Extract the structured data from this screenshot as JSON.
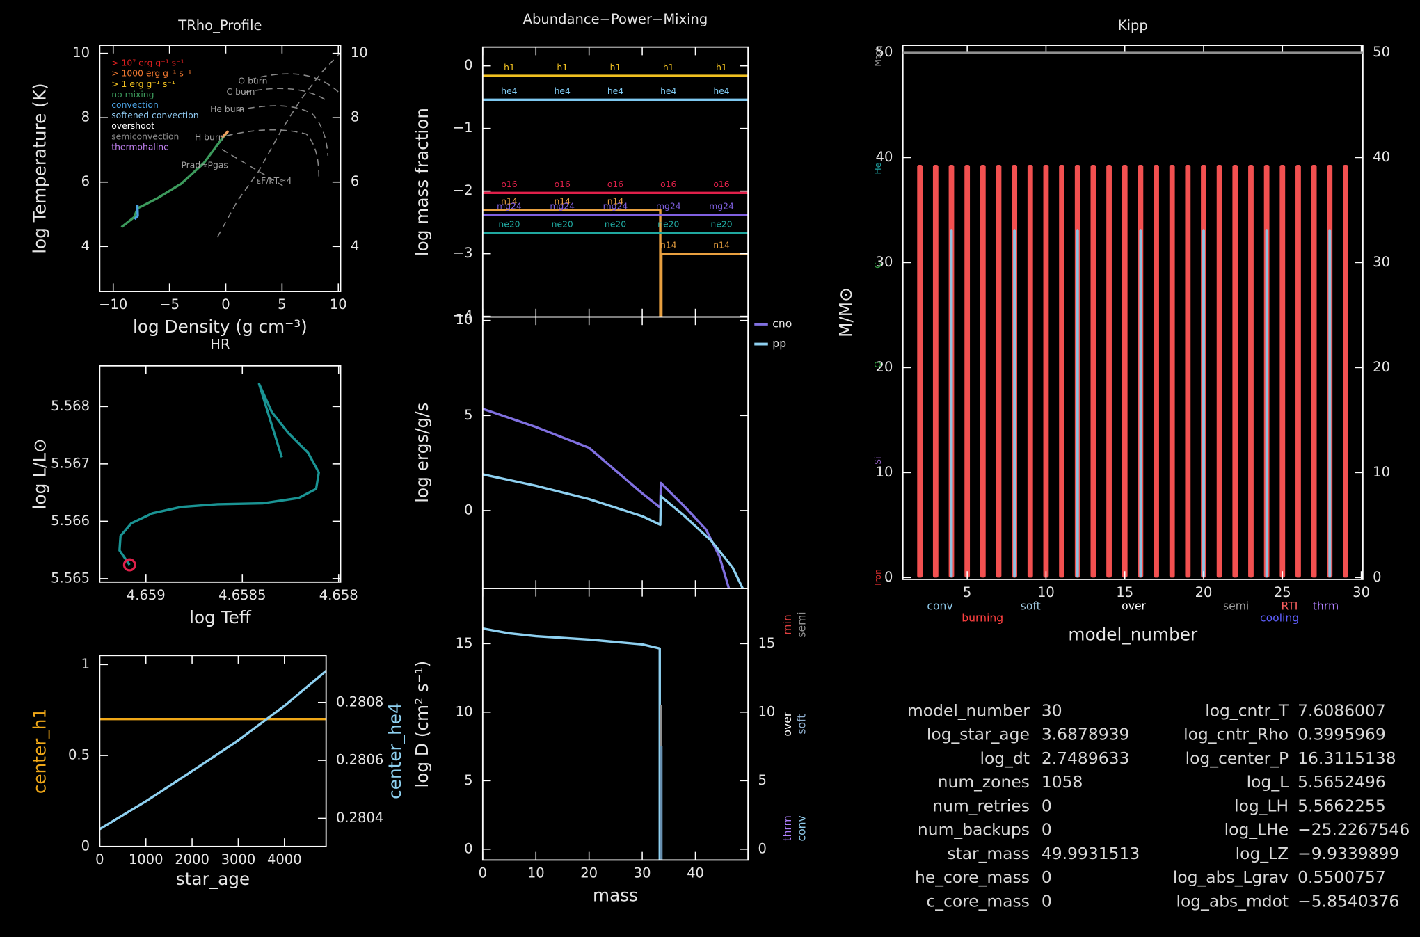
{
  "chart_data": [
    {
      "type": "line",
      "title": "TRho_Profile",
      "xlabel": "log Density (g cm⁻³)",
      "ylabel": "log Temperature (K)",
      "xlim": [
        -11.2,
        10.2
      ],
      "ylim": [
        2.6,
        10.25
      ],
      "xticks": [
        {
          "value": -10,
          "label": "−10"
        },
        {
          "value": -5,
          "label": "−5"
        },
        0,
        5,
        10
      ],
      "yticks": [
        4,
        6,
        8,
        10
      ],
      "series": [
        {
          "color": "#3c9a5c",
          "x": [
            -9.27,
            -8.14,
            -7.82,
            -7.18,
            -5.97,
            -3.96,
            -1.95,
            -0.74,
            0.06
          ],
          "values": [
            4.6,
            4.91,
            5.19,
            5.3,
            5.52,
            5.95,
            6.59,
            7.16,
            7.52
          ]
        },
        {
          "color": "#4aa0e0",
          "x": [
            -7.85,
            -7.82,
            -8.1
          ],
          "values": [
            5.3,
            4.95,
            4.85
          ]
        },
        {
          "color": "#f0a060",
          "x": [
            -0.34,
            0.22
          ],
          "values": [
            7.38,
            7.58
          ]
        }
      ],
      "legend_items": [
        {
          "text": "> 10⁷ erg g⁻¹ s⁻¹",
          "color": "#e02020"
        },
        {
          "text": "> 1000 erg g⁻¹ s⁻¹",
          "color": "#f07830"
        },
        {
          "text": "> 1 erg g⁻¹ s⁻¹",
          "color": "#f0c020"
        },
        {
          "text": "no mixing",
          "color": "#3c9a5c"
        },
        {
          "text": "convection",
          "color": "#4aa0e0"
        },
        {
          "text": "softened convection",
          "color": "#8ec8f0"
        },
        {
          "text": "overshoot",
          "color": "#ffffff"
        },
        {
          "text": "semiconvection",
          "color": "#909090"
        },
        {
          "text": "thermohaline",
          "color": "#c080f0"
        }
      ],
      "annotations": [
        "O burn",
        "C burn",
        "He burn",
        "H burn",
        "Prad≈Pgas",
        "εF/kT≈4"
      ]
    },
    {
      "type": "line",
      "title": "HR",
      "xlabel": "log Teff",
      "ylabel": "log L/L⊙",
      "xlim": [
        4.65924,
        4.65799
      ],
      "ylim": [
        5.56494,
        5.56871
      ],
      "xticks": [
        4.659,
        4.6585,
        4.658
      ],
      "yticks": [
        5.565,
        5.566,
        5.567,
        5.568
      ],
      "series": [
        {
          "color": "#1a9494",
          "x": [
            4.659085,
            4.659137,
            4.659132,
            4.659076,
            4.658967,
            4.658817,
            4.658629,
            4.658394,
            4.658206,
            4.658117,
            4.658103,
            4.658159,
            4.658262,
            4.658347,
            4.658413,
            4.658361,
            4.658295
          ],
          "values": [
            5.56524,
            5.565492,
            5.565744,
            5.565965,
            5.566139,
            5.566249,
            5.566296,
            5.566312,
            5.566407,
            5.566564,
            5.566848,
            5.567195,
            5.567542,
            5.567905,
            5.568394,
            5.567826,
            5.567116
          ]
        }
      ],
      "marker_color": "#e0204a"
    },
    {
      "type": "line",
      "xlabel": "star_age",
      "xlim": [
        0,
        4902
      ],
      "ylim": [
        0,
        1.05
      ],
      "y2lim": [
        0.280303,
        0.280962
      ],
      "xticks": [
        0,
        1000,
        2000,
        3000,
        4000
      ],
      "yticks": [
        0,
        0.5,
        1
      ],
      "y2ticks": [
        0.2804,
        0.2806,
        0.2808
      ],
      "series": [
        {
          "name": "center_h1",
          "color": "#f0a818",
          "x": [
            0,
            4902
          ],
          "values": [
            0.7,
            0.7
          ]
        },
        {
          "name": "center_he4",
          "color": "#8ed0f0",
          "axis": "y2",
          "x": [
            0,
            1000,
            2000,
            3000,
            4000,
            4902
          ],
          "values": [
            0.280363,
            0.280459,
            0.280563,
            0.280669,
            0.280788,
            0.280909
          ]
        }
      ]
    },
    {
      "type": "line",
      "title": "Abundance−Power−Mixing",
      "ylabel": "log mass fraction",
      "xlim": [
        0,
        49.9
      ],
      "ylim": [
        -4.01,
        0.3
      ],
      "xticks": [
        0,
        10,
        20,
        30,
        40
      ],
      "yticks": [
        0,
        {
          "value": -1,
          "label": "−1"
        },
        {
          "value": -2,
          "label": "−2"
        },
        {
          "value": -3,
          "label": "−3"
        },
        {
          "value": -4,
          "label": "−4"
        }
      ],
      "series": [
        {
          "name": "h1",
          "color": "#f0c020",
          "x": [
            0,
            49.9
          ],
          "values": [
            -0.16,
            -0.16
          ]
        },
        {
          "name": "he4",
          "color": "#7ec8f0",
          "x": [
            0,
            49.9
          ],
          "values": [
            -0.54,
            -0.54
          ]
        },
        {
          "name": "o16",
          "color": "#e0204a",
          "x": [
            0,
            49.9
          ],
          "values": [
            -2.03,
            -2.03
          ]
        },
        {
          "name": "n14",
          "color": "#e8a040",
          "x": [
            0,
            33.4,
            33.4,
            33.6,
            33.6,
            49.9
          ],
          "values": [
            -2.3,
            -2.3,
            -4.5,
            -4.5,
            -3.0,
            -3.0
          ]
        },
        {
          "name": "mg24",
          "color": "#8060e0",
          "x": [
            0,
            49.9
          ],
          "values": [
            -2.38,
            -2.38
          ]
        },
        {
          "name": "ne20",
          "color": "#20a8a0",
          "x": [
            0,
            49.9
          ],
          "values": [
            -2.67,
            -2.67
          ]
        }
      ]
    },
    {
      "type": "line",
      "ylabel": "log ergs/g/s",
      "xlim": [
        0,
        49.9
      ],
      "ylim": [
        -4.1,
        10.19
      ],
      "xticks": [
        0,
        10,
        20,
        30,
        40
      ],
      "yticks": [
        0,
        5,
        10
      ],
      "series": [
        {
          "name": "cno",
          "color": "#8070e0",
          "x": [
            0,
            10,
            20,
            30,
            33.4,
            33.5,
            38,
            42,
            44.5,
            46.3
          ],
          "values": [
            5.35,
            4.4,
            3.3,
            0.9,
            0.15,
            1.45,
            0.2,
            -1.0,
            -2.4,
            -4.1
          ]
        },
        {
          "name": "pp",
          "color": "#8ed0f0",
          "x": [
            0,
            10,
            20,
            30,
            33.4,
            33.5,
            38,
            43,
            47,
            48.9
          ],
          "values": [
            1.9,
            1.3,
            0.6,
            -0.3,
            -0.75,
            0.75,
            -0.3,
            -1.6,
            -3.0,
            -4.1
          ]
        }
      ]
    },
    {
      "type": "line",
      "xlabel": "mass",
      "ylabel": "log D (cm² s⁻¹)",
      "xlim": [
        0,
        49.9
      ],
      "ylim": [
        -0.79,
        19.03
      ],
      "xticks": [
        0,
        10,
        20,
        30,
        40
      ],
      "yticks": [
        0,
        5,
        10,
        15
      ],
      "series": [
        {
          "color": "#8ed0f0",
          "x": [
            0,
            5,
            10,
            20,
            30,
            33.3,
            33.3
          ],
          "values": [
            16.1,
            15.75,
            15.55,
            15.3,
            14.95,
            14.65,
            -1
          ]
        },
        {
          "color": "#909090",
          "x": [
            33.5,
            33.5
          ],
          "values": [
            10.5,
            -1
          ]
        },
        {
          "color": "#6890b0",
          "x": [
            33.6,
            33.6
          ],
          "values": [
            7.5,
            -1
          ]
        }
      ],
      "key": [
        {
          "name": "min",
          "color": "#e04040"
        },
        {
          "name": "semi",
          "color": "#909090"
        },
        {
          "name": "over",
          "color": "#ffffff"
        },
        {
          "name": "soft",
          "color": "#90b0d0"
        },
        {
          "name": "thrm",
          "color": "#b080ff"
        },
        {
          "name": "conv",
          "color": "#8ec8e8"
        }
      ]
    },
    {
      "type": "kipp",
      "title": "Kipp",
      "xlabel": "model_number",
      "ylabel": "M/M⊙",
      "xlim": [
        0.92,
        30.1
      ],
      "ylim": [
        -0.17,
        50.69
      ],
      "xticks": [
        5,
        10,
        15,
        20,
        25,
        30
      ],
      "yticks": [
        0,
        10,
        20,
        30,
        40,
        50
      ],
      "series": [
        {
          "color": "#f25050",
          "x": [
            2,
            3,
            4,
            5,
            6,
            7,
            8,
            9,
            10,
            11,
            12,
            13,
            14,
            15,
            16,
            17,
            18,
            19,
            20,
            21,
            22,
            23,
            24,
            25,
            26,
            27,
            28,
            29
          ],
          "values": [
            39.3,
            39.3,
            39.3,
            39.3,
            39.3,
            39.3,
            39.3,
            39.3,
            39.3,
            39.3,
            39.3,
            39.3,
            39.3,
            39.3,
            39.3,
            39.3,
            39.3,
            39.3,
            39.3,
            39.3,
            39.3,
            39.3,
            39.3,
            39.3,
            39.3,
            39.3,
            39.3,
            39.3
          ]
        },
        {
          "color": "#90c0e0",
          "x": [
            4,
            8,
            12,
            16,
            20,
            24,
            28
          ],
          "values": [
            33.2,
            33.2,
            33.2,
            33.2,
            33.2,
            33.2,
            33.2
          ]
        }
      ],
      "key": [
        {
          "name": "conv",
          "color": "#8ec8e8"
        },
        {
          "name": "burning",
          "color": "#ff4040"
        },
        {
          "name": "soft",
          "color": "#a0c8e0"
        },
        {
          "name": "over",
          "color": "#ffffff"
        },
        {
          "name": "semi",
          "color": "#a0a0a0"
        },
        {
          "name": "RTI",
          "color": "#ff6060"
        },
        {
          "name": "cooling",
          "color": "#6060ff"
        },
        {
          "name": "thrm",
          "color": "#b080ff"
        }
      ],
      "boundary_labels": [
        {
          "value": 49.99,
          "label": "Mtot",
          "color": "#909090"
        },
        {
          "value": 39.0,
          "label": "He",
          "color": "#20a0a0"
        },
        {
          "value": 29.5,
          "label": "C",
          "color": "#30a040"
        },
        {
          "value": 20.1,
          "label": "O",
          "color": "#30a040"
        },
        {
          "value": 11.0,
          "label": "Si",
          "color": "#9060c0"
        },
        {
          "value": 0.3,
          "label": "Iron",
          "color": "#e03030"
        }
      ]
    }
  ],
  "summary": {
    "left": [
      [
        "model_number",
        "30"
      ],
      [
        "log_star_age",
        "3.6878939"
      ],
      [
        "log_dt",
        "2.7489633"
      ],
      [
        "num_zones",
        "1058"
      ],
      [
        "num_retries",
        "0"
      ],
      [
        "num_backups",
        "0"
      ],
      [
        "star_mass",
        "49.9931513"
      ],
      [
        "he_core_mass",
        "0"
      ],
      [
        "c_core_mass",
        "0"
      ]
    ],
    "right": [
      [
        "log_cntr_T",
        "7.6086007"
      ],
      [
        "log_cntr_Rho",
        "0.3995969"
      ],
      [
        "log_center_P",
        "16.3115138"
      ],
      [
        "log_L",
        "5.5652496"
      ],
      [
        "log_LH",
        "5.5662255"
      ],
      [
        "log_LHe",
        "−25.2267546"
      ],
      [
        "log_LZ",
        "−9.9339899"
      ],
      [
        "log_abs_Lgrav",
        "0.5500757"
      ],
      [
        "log_abs_mdot",
        "−5.8540376"
      ]
    ]
  }
}
